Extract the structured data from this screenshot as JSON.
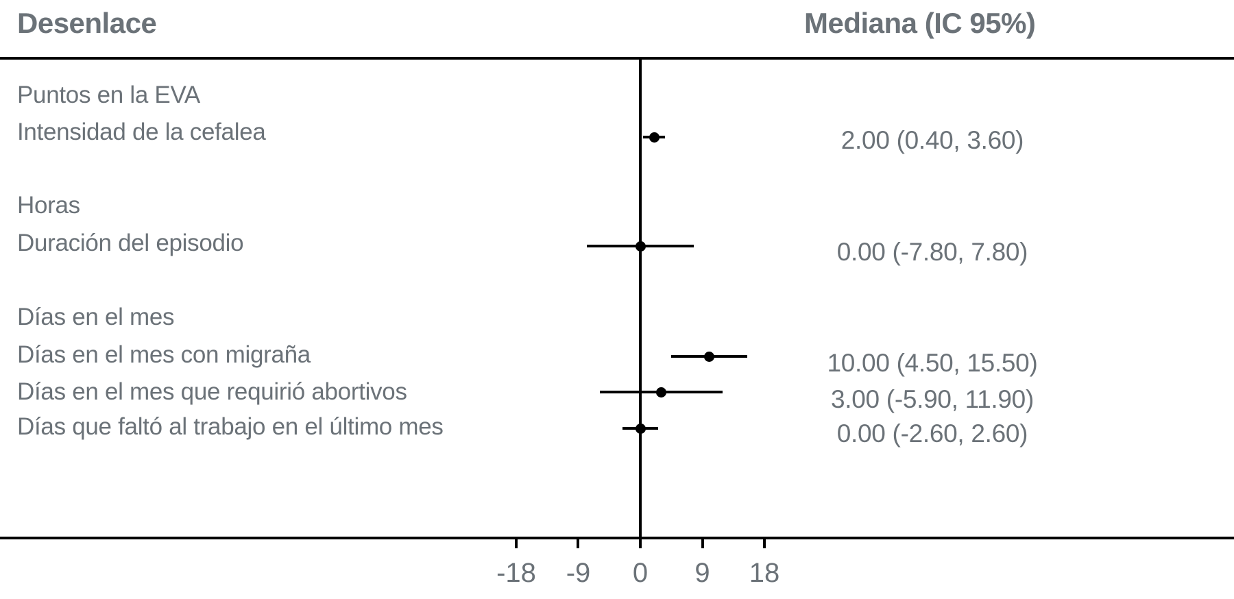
{
  "headers": {
    "outcome": "Desenlace",
    "median": "Mediana (IC 95%)"
  },
  "colors": {
    "text_gray": "#6b7278",
    "line_black": "#000000",
    "background": "#ffffff"
  },
  "chart_data": {
    "type": "scatter",
    "subtype": "forest-plot",
    "left_column_header": "Desenlace",
    "right_column_header": "Mediana (IC 95%)",
    "reference_line": 0,
    "grid": false,
    "x_axis": {
      "ticks": [
        -18,
        -9,
        0,
        9,
        18
      ],
      "tick_labels": [
        "-18",
        "-9",
        "0",
        "9",
        "18"
      ],
      "range": [
        -23,
        23
      ]
    },
    "rows": [
      {
        "type": "group",
        "label": "Puntos en la EVA"
      },
      {
        "type": "item",
        "label": "Intensidad de la cefalea",
        "median": 2.0,
        "ci_low": 0.4,
        "ci_high": 3.6,
        "display": "2.00 (0.40, 3.60)"
      },
      {
        "type": "group",
        "label": "Horas"
      },
      {
        "type": "item",
        "label": "Duración del episodio",
        "median": 0.0,
        "ci_low": -7.8,
        "ci_high": 7.8,
        "display": "0.00 (-7.80, 7.80)"
      },
      {
        "type": "group",
        "label": "Días en el mes"
      },
      {
        "type": "item",
        "label": "Días en el mes con migraña",
        "median": 10.0,
        "ci_low": 4.5,
        "ci_high": 15.5,
        "display": "10.00 (4.50, 15.50)"
      },
      {
        "type": "item",
        "label": "Días en el mes que requirió abortivos",
        "median": 3.0,
        "ci_low": -5.9,
        "ci_high": 11.9,
        "display": "3.00 (-5.90, 11.90)"
      },
      {
        "type": "item",
        "label": "Días que faltó al trabajo en el último mes",
        "median": 0.0,
        "ci_low": -2.6,
        "ci_high": 2.6,
        "display": "0.00 (-2.60, 2.60)"
      }
    ]
  }
}
